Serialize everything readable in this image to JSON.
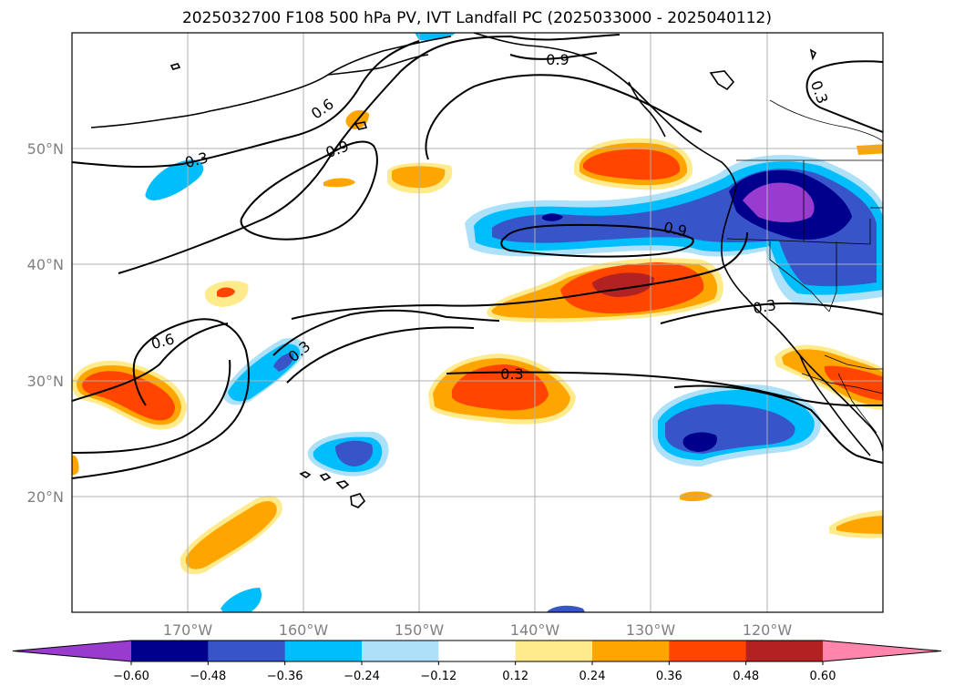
{
  "title": "2025032700 F108 500 hPa PV, IVT Landfall PC (2025033000 - 2025040112)",
  "map": {
    "lon_range": [
      -180,
      -110
    ],
    "lat_range": [
      10,
      60
    ],
    "lat_labels": [
      "20°N",
      "30°N",
      "40°N",
      "50°N"
    ],
    "lon_labels": [
      "170°W",
      "160°W",
      "150°W",
      "140°W",
      "130°W",
      "120°W"
    ],
    "contour_labels": [
      "0.9",
      "0.6",
      "0.3",
      "0.9",
      "0.9",
      "0.3",
      "0.3",
      "0.6",
      "0.3",
      "0.3"
    ],
    "colors": {
      "purple": "#9a3bd0",
      "navy": "#00008c",
      "royal": "#3755c9",
      "deepsky": "#00bdfb",
      "lightblue": "#ade1fa",
      "lightyellow": "#ffea8c",
      "orange": "#ffa500",
      "orangered": "#ff4500",
      "firebrick": "#b22222",
      "pink": "#ff85ac"
    }
  },
  "colorbar": {
    "ticks": [
      "−0.60",
      "−0.48",
      "−0.36",
      "−0.24",
      "−0.12",
      "0.12",
      "0.24",
      "0.36",
      "0.48",
      "0.60"
    ],
    "colors": [
      "#9a3bd0",
      "#00008c",
      "#3755c9",
      "#00bdfb",
      "#ade1fa",
      "#ffffff",
      "#ffea8c",
      "#ffa500",
      "#ff4500",
      "#b22222",
      "#ff85ac"
    ]
  }
}
